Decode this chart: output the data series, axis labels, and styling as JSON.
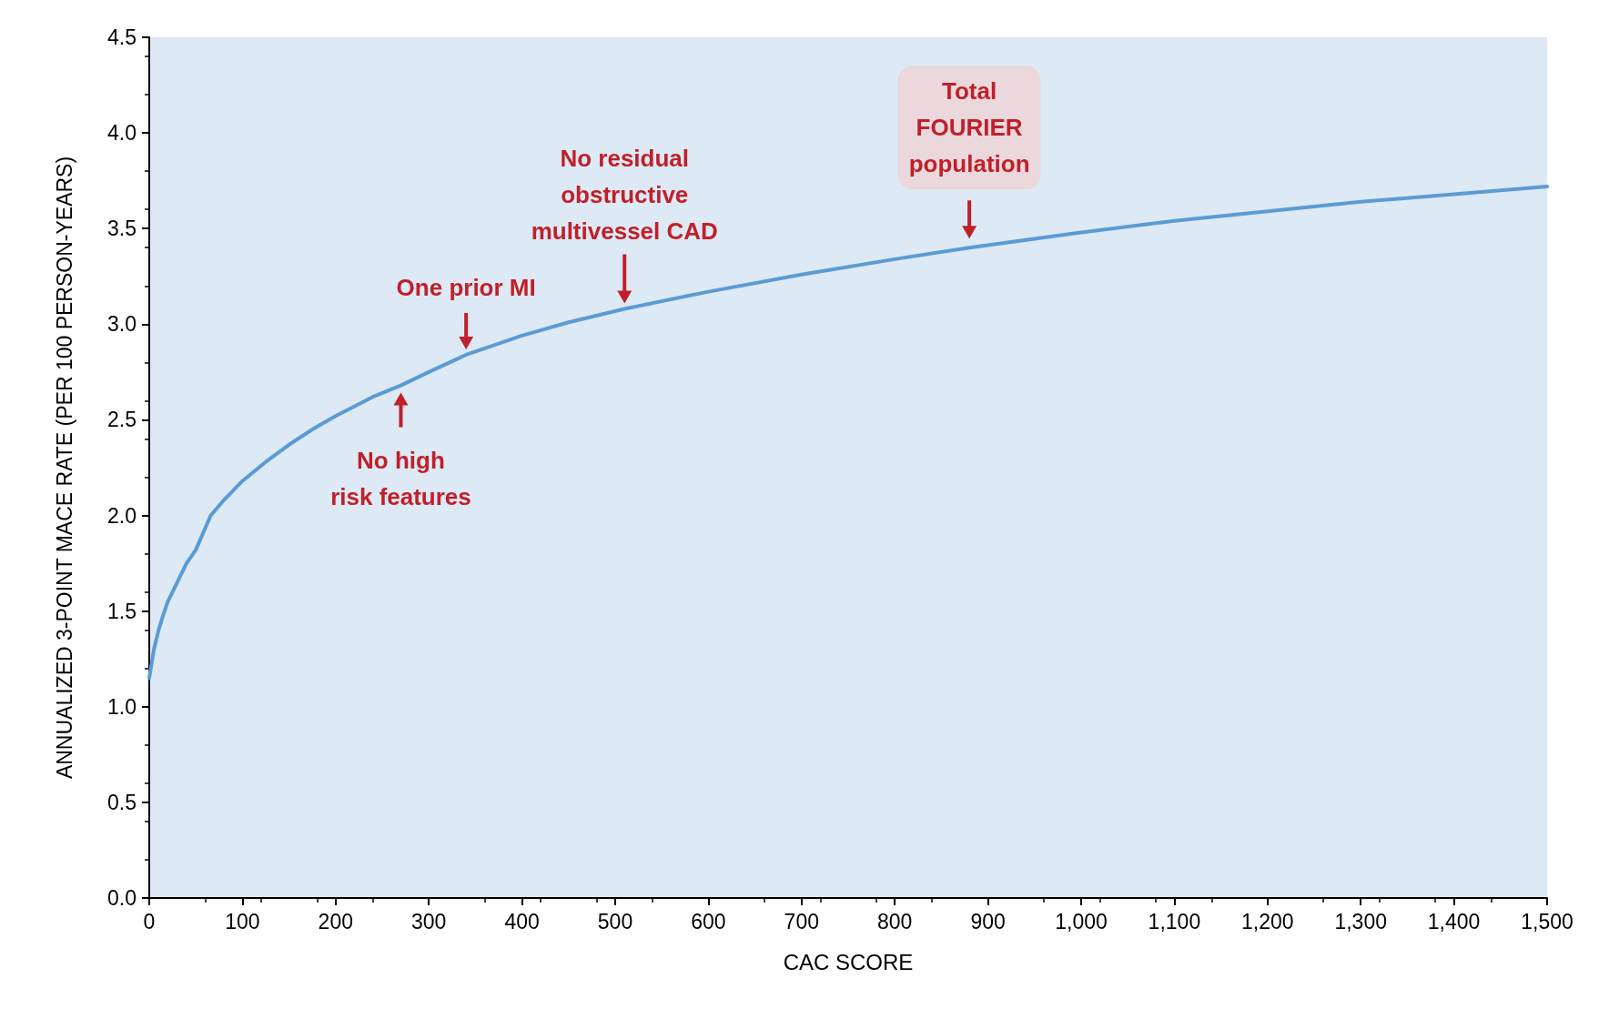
{
  "chart_data": {
    "type": "line",
    "xlabel": "CAC SCORE",
    "ylabel": "ANNUALIZED 3-POINT MACE RATE (PER 100 PERSON-YEARS)",
    "x": [
      0,
      5,
      10,
      15,
      20,
      30,
      40,
      50,
      66,
      80,
      100,
      125,
      150,
      175,
      200,
      240,
      270,
      300,
      340,
      400,
      450,
      510,
      600,
      700,
      800,
      880,
      1000,
      1100,
      1200,
      1300,
      1400,
      1500
    ],
    "series": [
      {
        "color": "#5b9bd5",
        "values": [
          1.15,
          1.3,
          1.4,
          1.48,
          1.55,
          1.65,
          1.75,
          1.82,
          2.0,
          2.08,
          2.18,
          2.28,
          2.37,
          2.45,
          2.52,
          2.62,
          2.68,
          2.75,
          2.84,
          2.94,
          3.01,
          3.08,
          3.17,
          3.26,
          3.34,
          3.4,
          3.48,
          3.54,
          3.59,
          3.64,
          3.68,
          3.72
        ]
      }
    ],
    "xlim": [
      0,
      1500
    ],
    "xticks": [
      0,
      100,
      200,
      300,
      400,
      500,
      600,
      700,
      800,
      900,
      {
        "value": 1000,
        "label": "1,000"
      },
      {
        "value": 1100,
        "label": "1,100"
      },
      {
        "value": 1200,
        "label": "1,200"
      },
      {
        "value": 1300,
        "label": "1,300"
      },
      {
        "value": 1400,
        "label": "1,400"
      },
      {
        "value": 1500,
        "label": "1,500"
      }
    ],
    "ylim": [
      0,
      4.5
    ],
    "yticks": [
      {
        "value": 0,
        "label": "0.0"
      },
      0.5,
      {
        "value": 1,
        "label": "1.0"
      },
      1.5,
      {
        "value": 2,
        "label": "2.0"
      },
      2.5,
      {
        "value": 3,
        "label": "3.0"
      },
      3.5,
      {
        "value": 4,
        "label": "4.0"
      },
      4.5
    ],
    "annotations": [
      {
        "text": "No high\nrisk features",
        "x": 270,
        "y": 2.68
      },
      {
        "text": "One prior MI",
        "x": 340,
        "y": 2.84
      },
      {
        "text": "No residual\nobstructive\nmultivessel CAD",
        "x": 510,
        "y": 3.08
      },
      {
        "text": "Total\nFOURIER\npopulation",
        "x": 880,
        "y": 3.4
      }
    ],
    "grid": false,
    "marker": "none",
    "line_style": "solid"
  }
}
